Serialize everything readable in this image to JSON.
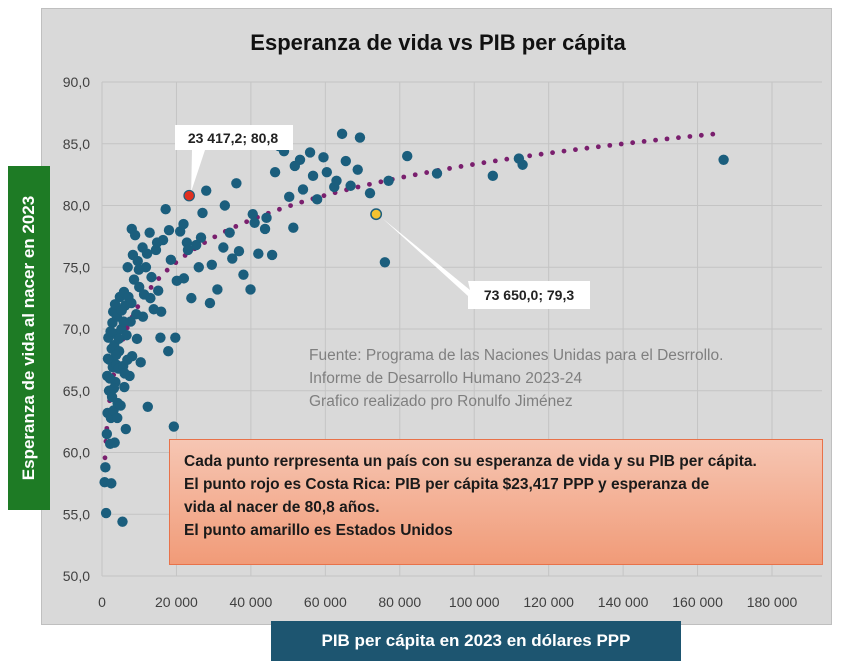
{
  "chart_data": {
    "type": "scatter",
    "title": "Esperanza de vida vs PIB per cápita",
    "xlabel": "PIB per cápita  en 2023 en dólares PPP",
    "ylabel": "Esperanza de vida al nacer en 2023",
    "xlim": [
      0,
      180000
    ],
    "ylim": [
      50,
      90
    ],
    "x_ticks": [
      0,
      20000,
      40000,
      60000,
      80000,
      100000,
      120000,
      140000,
      160000,
      180000
    ],
    "x_tick_labels": [
      "0",
      "20 000",
      "40 000",
      "60 000",
      "80 000",
      "100 000",
      "120 000",
      "140 000",
      "160 000",
      "180 000"
    ],
    "y_ticks": [
      50,
      55,
      60,
      65,
      70,
      75,
      80,
      85,
      90
    ],
    "y_tick_labels": [
      "50,0",
      "55,0",
      "60,0",
      "65,0",
      "70,0",
      "75,0",
      "80,0",
      "85,0",
      "90,0"
    ],
    "grid": true,
    "colors": {
      "points": "#1b5e7d",
      "trend": "#7a1f6e",
      "costa_rica": "#e03020",
      "usa": "#f2c230",
      "background": "#d9d9d9"
    },
    "trendline": {
      "type": "logarithmic",
      "style": "dotted",
      "from_x": 800,
      "to_x": 167000
    },
    "points": [
      [
        700,
        57.6
      ],
      [
        900,
        58.8
      ],
      [
        1100,
        55.1
      ],
      [
        1300,
        61.5
      ],
      [
        1400,
        66.2
      ],
      [
        1500,
        63.2
      ],
      [
        1700,
        69.3
      ],
      [
        1900,
        65.0
      ],
      [
        2000,
        67.5
      ],
      [
        2200,
        60.7
      ],
      [
        2400,
        62.8
      ],
      [
        2500,
        57.5
      ],
      [
        2600,
        68.4
      ],
      [
        2700,
        64.5
      ],
      [
        2800,
        70.5
      ],
      [
        2900,
        66.9
      ],
      [
        3000,
        71.4
      ],
      [
        3100,
        63.4
      ],
      [
        3300,
        68.7
      ],
      [
        3400,
        60.8
      ],
      [
        3500,
        72.0
      ],
      [
        3600,
        65.7
      ],
      [
        3700,
        69.6
      ],
      [
        3900,
        67.1
      ],
      [
        4000,
        71.0
      ],
      [
        4200,
        64.0
      ],
      [
        4400,
        66.8
      ],
      [
        4600,
        68.2
      ],
      [
        4800,
        72.6
      ],
      [
        5000,
        63.8
      ],
      [
        5200,
        70.0
      ],
      [
        5500,
        54.4
      ],
      [
        5700,
        67.0
      ],
      [
        5900,
        73.0
      ],
      [
        6000,
        65.3
      ],
      [
        6200,
        71.9
      ],
      [
        6400,
        61.9
      ],
      [
        6600,
        69.5
      ],
      [
        6900,
        75.0
      ],
      [
        7100,
        72.6
      ],
      [
        7400,
        66.2
      ],
      [
        7700,
        70.6
      ],
      [
        8000,
        78.1
      ],
      [
        8300,
        76.0
      ],
      [
        8600,
        74.0
      ],
      [
        8900,
        77.6
      ],
      [
        9200,
        71.2
      ],
      [
        9600,
        75.5
      ],
      [
        10000,
        73.4
      ],
      [
        10400,
        67.3
      ],
      [
        10900,
        76.6
      ],
      [
        11300,
        72.8
      ],
      [
        11800,
        75.0
      ],
      [
        12300,
        63.7
      ],
      [
        12800,
        77.8
      ],
      [
        13300,
        74.2
      ],
      [
        13900,
        71.6
      ],
      [
        14500,
        76.4
      ],
      [
        15100,
        73.1
      ],
      [
        15700,
        69.3
      ],
      [
        16400,
        77.2
      ],
      [
        17100,
        79.7
      ],
      [
        17800,
        68.2
      ],
      [
        18500,
        75.6
      ],
      [
        19300,
        62.1
      ],
      [
        20100,
        73.9
      ],
      [
        21000,
        77.9
      ],
      [
        21900,
        78.5
      ],
      [
        22800,
        77.0
      ],
      [
        24000,
        72.5
      ],
      [
        25300,
        76.8
      ],
      [
        26600,
        77.4
      ],
      [
        28000,
        81.2
      ],
      [
        29500,
        75.2
      ],
      [
        31000,
        73.2
      ],
      [
        32600,
        76.6
      ],
      [
        34300,
        77.8
      ],
      [
        36100,
        81.8
      ],
      [
        38000,
        74.4
      ],
      [
        39900,
        73.2
      ],
      [
        42000,
        76.1
      ],
      [
        44200,
        79.0
      ],
      [
        46500,
        82.7
      ],
      [
        48900,
        84.4
      ],
      [
        51400,
        78.2
      ],
      [
        54000,
        81.3
      ],
      [
        56700,
        82.4
      ],
      [
        59500,
        83.9
      ],
      [
        62400,
        81.5
      ],
      [
        65500,
        83.6
      ],
      [
        68700,
        82.9
      ],
      [
        72000,
        81.0
      ],
      [
        76000,
        75.4
      ],
      [
        82000,
        84.0
      ],
      [
        90000,
        82.6
      ],
      [
        105000,
        82.4
      ],
      [
        113000,
        83.3
      ],
      [
        167000,
        83.7
      ],
      [
        2100,
        66.0
      ],
      [
        3800,
        67.9
      ],
      [
        4500,
        69.2
      ],
      [
        5300,
        71.5
      ],
      [
        6800,
        67.5
      ],
      [
        7900,
        72.1
      ],
      [
        9900,
        74.8
      ],
      [
        12100,
        76.1
      ],
      [
        14800,
        77.0
      ],
      [
        18000,
        78.0
      ],
      [
        23100,
        76.4
      ],
      [
        27000,
        79.4
      ],
      [
        33000,
        80.0
      ],
      [
        36800,
        76.3
      ],
      [
        41000,
        78.6
      ],
      [
        45700,
        76.0
      ],
      [
        50300,
        80.7
      ],
      [
        53200,
        83.7
      ],
      [
        57800,
        80.5
      ],
      [
        60400,
        82.7
      ],
      [
        64500,
        85.8
      ],
      [
        69300,
        85.5
      ],
      [
        77000,
        82.0
      ],
      [
        112000,
        83.8
      ],
      [
        1600,
        67.6
      ],
      [
        2300,
        69.8
      ],
      [
        3200,
        65.2
      ],
      [
        4100,
        62.8
      ],
      [
        5800,
        70.6
      ],
      [
        6100,
        66.4
      ],
      [
        8100,
        67.8
      ],
      [
        9400,
        69.2
      ],
      [
        11000,
        71.0
      ],
      [
        13000,
        72.5
      ],
      [
        15900,
        71.4
      ],
      [
        19700,
        69.3
      ],
      [
        22000,
        74.1
      ],
      [
        26000,
        75.0
      ],
      [
        29000,
        72.1
      ],
      [
        35000,
        75.7
      ],
      [
        40500,
        79.3
      ],
      [
        43800,
        78.1
      ],
      [
        47600,
        84.8
      ],
      [
        51800,
        83.2
      ],
      [
        55900,
        84.3
      ],
      [
        63000,
        82.0
      ],
      [
        66800,
        81.6
      ]
    ],
    "highlighted": [
      {
        "x": 23417.2,
        "y": 80.8,
        "label": "23 417,2; 80,8",
        "color": "#e03020"
      },
      {
        "x": 73650.0,
        "y": 79.3,
        "label": "73 650,0; 79,3",
        "color": "#f2c230"
      }
    ],
    "source_lines": [
      "Fuente:  Programa de las Naciones Unidas para el Desrrollo.",
      "Informe de Desarrollo Humano 2023-24",
      "Grafico realizado pro Ronulfo Jiménez"
    ],
    "note_lines": [
      "Cada punto rerpresenta un país con su esperanza de vida y su PIB per cápita.",
      "El punto rojo es Costa Rica:  PIB per cápita $23,417 PPP y esperanza de",
      "vida al nacer de 80,8 años.",
      "El punto amarillo es Estados Unidos"
    ]
  }
}
